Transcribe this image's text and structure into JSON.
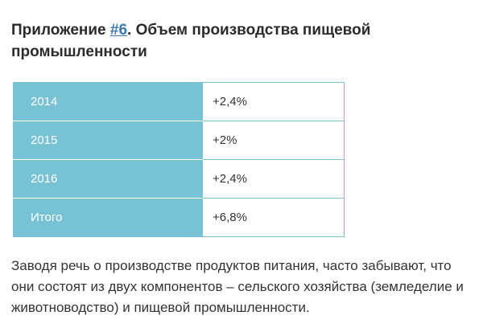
{
  "heading": {
    "prefix": "Приложение ",
    "link_text": "#6",
    "suffix": ". Объем производства пищевой промышленности"
  },
  "table": {
    "rows": [
      {
        "label": "2014",
        "value": "+2,4%"
      },
      {
        "label": "2015",
        "value": "+2%"
      },
      {
        "label": "2016",
        "value": "+2,4%"
      },
      {
        "label": "Итого",
        "value": "+6,8%"
      }
    ]
  },
  "paragraph": "Заводя речь о производстве продуктов питания, часто забывают, что они состоят из двух компонентов – сельского хозяйства (земледелие и животноводство) и пищевой промышленности.",
  "colors": {
    "label_background": "#78c2d6",
    "link": "#3a78b5"
  }
}
